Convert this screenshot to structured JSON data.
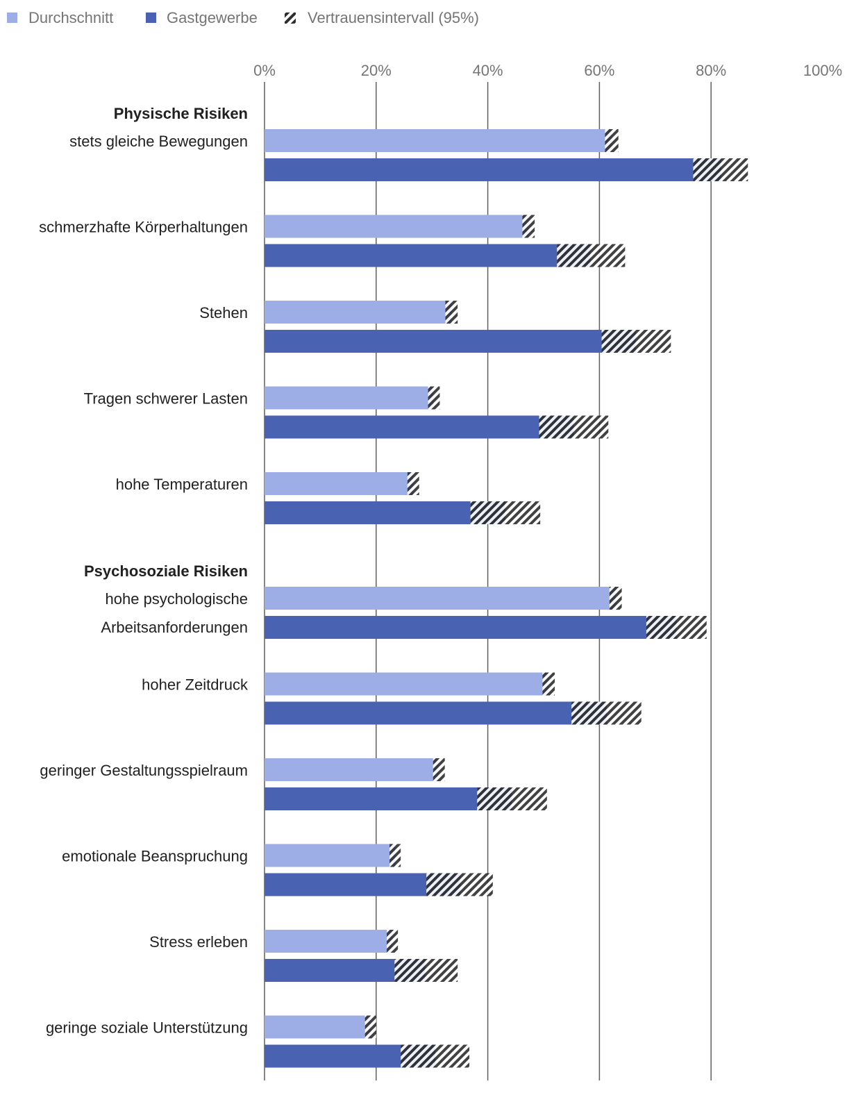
{
  "chart_data": {
    "type": "bar",
    "orientation": "horizontal",
    "title": "",
    "xlabel": "",
    "ylabel": "",
    "xlim": [
      0,
      100
    ],
    "x_ticks": [
      "0%",
      "20%",
      "40%",
      "60%",
      "80%",
      "100%"
    ],
    "grid": true,
    "legend": {
      "position": "top-left",
      "entries": [
        {
          "label": "Durchschnitt",
          "color": "#9daee6"
        },
        {
          "label": "Gastgewerbe",
          "color": "#4a62b2"
        },
        {
          "label": "Vertrauensintervall (95%)",
          "pattern": "hatch"
        }
      ]
    },
    "colors": {
      "durchschnitt": "#9daee6",
      "gastgewerbe": "#4a62b2",
      "hatch": "#2d2d2d",
      "grid": "#5f5f5f"
    },
    "groups": [
      {
        "label": "Physische Risiken",
        "categories": [
          {
            "label": [
              "stets gleiche Bewegungen"
            ],
            "durchschnitt": {
              "value": 62.2,
              "ci_low": 61.0,
              "ci_high": 63.4
            },
            "gastgewerbe": {
              "value": 81.8,
              "ci_low": 76.8,
              "ci_high": 86.6
            }
          },
          {
            "label": [
              "schmerzhafte Körperhaltungen"
            ],
            "durchschnitt": {
              "value": 47.3,
              "ci_low": 46.2,
              "ci_high": 48.4
            },
            "gastgewerbe": {
              "value": 58.4,
              "ci_low": 52.4,
              "ci_high": 64.6
            }
          },
          {
            "label": [
              "Stehen"
            ],
            "durchschnitt": {
              "value": 33.5,
              "ci_low": 32.4,
              "ci_high": 34.6
            },
            "gastgewerbe": {
              "value": 66.5,
              "ci_low": 60.4,
              "ci_high": 72.8
            }
          },
          {
            "label": [
              "Tragen schwerer Lasten"
            ],
            "durchschnitt": {
              "value": 30.3,
              "ci_low": 29.3,
              "ci_high": 31.4
            },
            "gastgewerbe": {
              "value": 55.4,
              "ci_low": 49.2,
              "ci_high": 61.6
            }
          },
          {
            "label": [
              "hohe Temperaturen"
            ],
            "durchschnitt": {
              "value": 26.6,
              "ci_low": 25.6,
              "ci_high": 27.7
            },
            "gastgewerbe": {
              "value": 43.1,
              "ci_low": 36.9,
              "ci_high": 49.4
            }
          }
        ]
      },
      {
        "label": "Psychosoziale Risiken",
        "categories": [
          {
            "label": [
              "hohe psychologische",
              "Arbeitsanforderungen"
            ],
            "durchschnitt": {
              "value": 62.9,
              "ci_low": 61.8,
              "ci_high": 64.0
            },
            "gastgewerbe": {
              "value": 73.8,
              "ci_low": 68.4,
              "ci_high": 79.2
            }
          },
          {
            "label": [
              "hoher Zeitdruck"
            ],
            "durchschnitt": {
              "value": 50.9,
              "ci_low": 49.8,
              "ci_high": 52.0
            },
            "gastgewerbe": {
              "value": 61.3,
              "ci_low": 55.0,
              "ci_high": 67.5
            }
          },
          {
            "label": [
              "geringer Gestaltungsspielraum"
            ],
            "durchschnitt": {
              "value": 31.2,
              "ci_low": 30.2,
              "ci_high": 32.3
            },
            "gastgewerbe": {
              "value": 44.3,
              "ci_low": 38.1,
              "ci_high": 50.6
            }
          },
          {
            "label": [
              "emotionale Beanspruchung"
            ],
            "durchschnitt": {
              "value": 23.4,
              "ci_low": 22.4,
              "ci_high": 24.4
            },
            "gastgewerbe": {
              "value": 35.1,
              "ci_low": 29.0,
              "ci_high": 40.9
            }
          },
          {
            "label": [
              "Stress erleben"
            ],
            "durchschnitt": {
              "value": 22.9,
              "ci_low": 21.9,
              "ci_high": 23.9
            },
            "gastgewerbe": {
              "value": 28.8,
              "ci_low": 23.3,
              "ci_high": 34.6
            }
          },
          {
            "label": [
              "geringe soziale Unterstützung"
            ],
            "durchschnitt": {
              "value": 19.0,
              "ci_low": 18.0,
              "ci_high": 20.0
            },
            "gastgewerbe": {
              "value": 30.6,
              "ci_low": 24.4,
              "ci_high": 36.7
            }
          }
        ]
      }
    ]
  }
}
